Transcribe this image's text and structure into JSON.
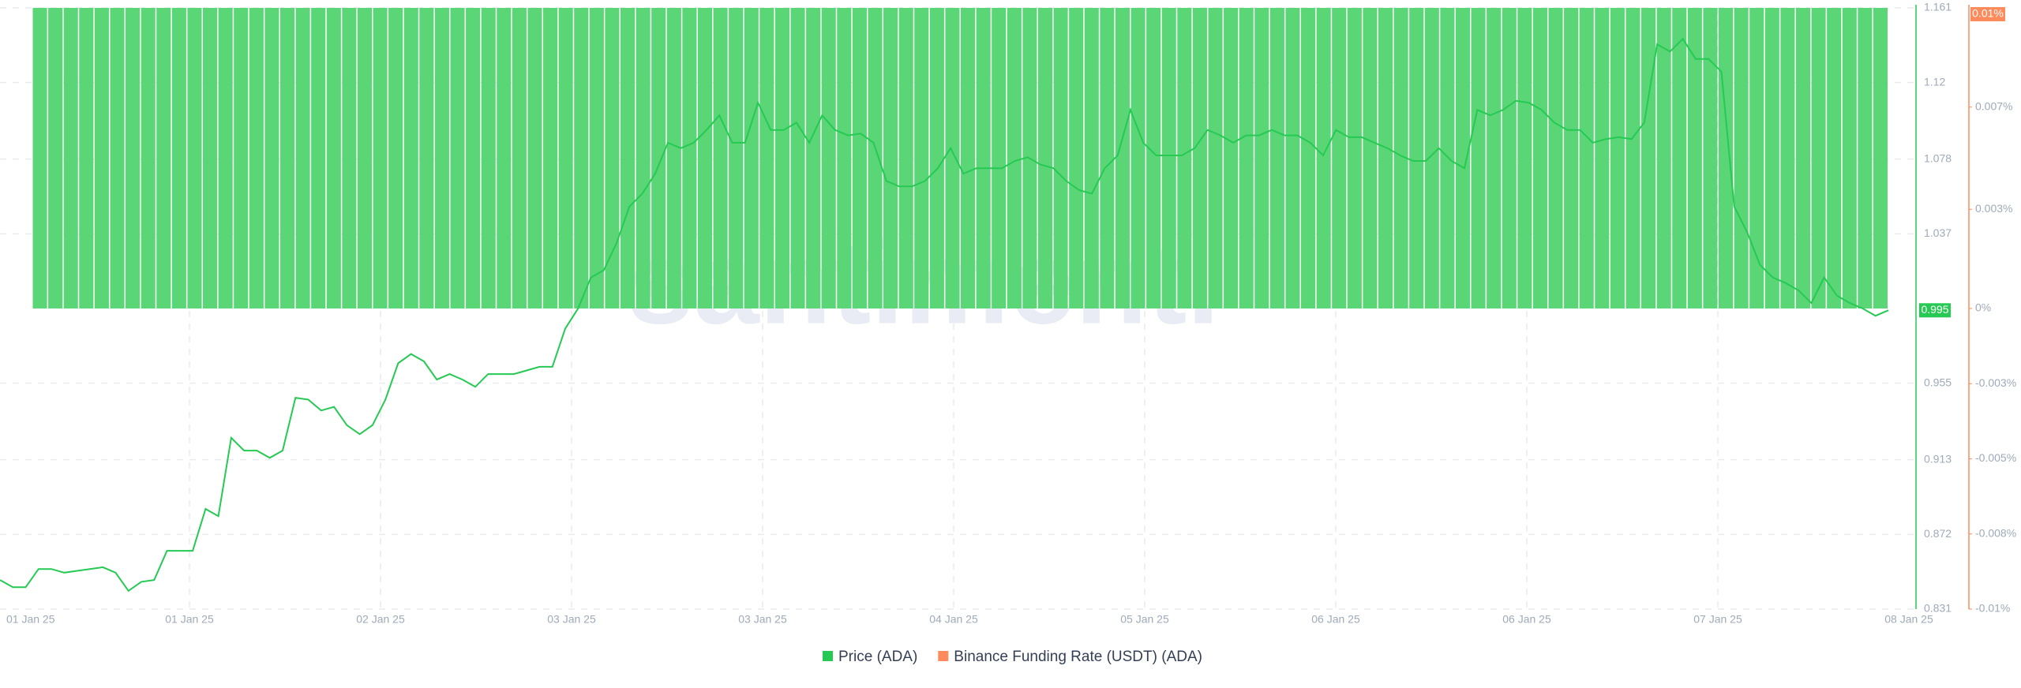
{
  "chart_data": {
    "type": "line",
    "watermark": "santiment.",
    "x_tick_labels": [
      "01 Jan 25",
      "01 Jan 25",
      "02 Jan 25",
      "03 Jan 25",
      "03 Jan 25",
      "04 Jan 25",
      "05 Jan 25",
      "06 Jan 25",
      "06 Jan 25",
      "07 Jan 25",
      "08 Jan 25"
    ],
    "ylim": [
      0.831,
      1.161
    ],
    "yticks": [
      1.161,
      1.12,
      1.078,
      1.037,
      0.955,
      0.913,
      0.872,
      0.831
    ],
    "y2lim": [
      -0.01,
      0.01
    ],
    "y2ticks": [
      {
        "value": 0.01,
        "label": "0.01%"
      },
      {
        "value": 0.0067,
        "label": "0.007%"
      },
      {
        "value": 0.0033,
        "label": "0.003%"
      },
      {
        "value": 0,
        "label": "0%"
      },
      {
        "value": -0.0025,
        "label": "-0.003%"
      },
      {
        "value": -0.005,
        "label": "-0.005%"
      },
      {
        "value": -0.0075,
        "label": "-0.008%"
      },
      {
        "value": -0.01,
        "label": "-0.01%"
      }
    ],
    "grid": true,
    "series": [
      {
        "name": "Price (ADA)",
        "color": "#26c953",
        "values": [
          0.847,
          0.843,
          0.843,
          0.853,
          0.853,
          0.851,
          0.852,
          0.853,
          0.854,
          0.851,
          0.841,
          0.846,
          0.847,
          0.863,
          0.863,
          0.863,
          0.886,
          0.882,
          0.925,
          0.918,
          0.918,
          0.914,
          0.918,
          0.947,
          0.946,
          0.94,
          0.942,
          0.932,
          0.927,
          0.932,
          0.946,
          0.966,
          0.971,
          0.967,
          0.957,
          0.96,
          0.957,
          0.953,
          0.96,
          0.96,
          0.96,
          0.962,
          0.964,
          0.964,
          0.985,
          0.996,
          1.013,
          1.017,
          1.032,
          1.052,
          1.059,
          1.07,
          1.087,
          1.084,
          1.087,
          1.094,
          1.102,
          1.087,
          1.087,
          1.109,
          1.094,
          1.094,
          1.098,
          1.087,
          1.102,
          1.094,
          1.091,
          1.092,
          1.087,
          1.066,
          1.063,
          1.063,
          1.066,
          1.073,
          1.084,
          1.07,
          1.073,
          1.073,
          1.073,
          1.077,
          1.079,
          1.075,
          1.073,
          1.066,
          1.061,
          1.059,
          1.073,
          1.08,
          1.105,
          1.087,
          1.08,
          1.08,
          1.08,
          1.084,
          1.094,
          1.091,
          1.087,
          1.091,
          1.091,
          1.094,
          1.091,
          1.091,
          1.087,
          1.08,
          1.094,
          1.09,
          1.09,
          1.087,
          1.084,
          1.08,
          1.077,
          1.077,
          1.084,
          1.077,
          1.073,
          1.105,
          1.102,
          1.105,
          1.11,
          1.109,
          1.105,
          1.098,
          1.094,
          1.094,
          1.087,
          1.089,
          1.09,
          1.089,
          1.098,
          1.141,
          1.137,
          1.144,
          1.133,
          1.133,
          1.126,
          1.052,
          1.038,
          1.02,
          1.013,
          1.01,
          1.006,
          0.999,
          1.013,
          1.003,
          0.999,
          0.996,
          0.992,
          0.995
        ]
      },
      {
        "name": "Binance Funding Rate (USDT) (ADA)",
        "color": "#ff8a5c",
        "bar_color": "#5ad677",
        "axis": "y2",
        "values": [
          0.01,
          0.01,
          0.01,
          0.01,
          0.01,
          0.01,
          0.01,
          0.01,
          0.01,
          0.01,
          0.01,
          0.01,
          0.01,
          0.01,
          0.01,
          0.01,
          0.01,
          0.01,
          0.01,
          0.01,
          0.01,
          0.01,
          0.01,
          0.01,
          0.01,
          0.01,
          0.01,
          0.01,
          0.01,
          0.01,
          0.01,
          0.01,
          0.01,
          0.01,
          0.01,
          0.01,
          0.01,
          0.01,
          0.01,
          0.01,
          0.01,
          0.01,
          0.01,
          0.01,
          0.01,
          0.01,
          0.01,
          0.01,
          0.01,
          0.01,
          0.01,
          0.01,
          0.01,
          0.01,
          0.01,
          0.01,
          0.01,
          0.01,
          0.01,
          0.01,
          0.01,
          0.01,
          0.01,
          0.01,
          0.01,
          0.01,
          0.01,
          0.01,
          0.01,
          0.01,
          0.01,
          0.01,
          0.01,
          0.01,
          0.01,
          0.01,
          0.01,
          0.01,
          0.01,
          0.01,
          0.01,
          0.01,
          0.01,
          0.01,
          0.01,
          0.01,
          0.01,
          0.01,
          0.01,
          0.01,
          0.01,
          0.01,
          0.01,
          0.01,
          0.01,
          0.01,
          0.01,
          0.01,
          0.01,
          0.01,
          0.01,
          0.01,
          0.01,
          0.01,
          0.01,
          0.01,
          0.01,
          0.01,
          0.01,
          0.01,
          0.01,
          0.01,
          0.01,
          0.01,
          0.01,
          0.01,
          0.01,
          0.01,
          0.01,
          0.01
        ]
      }
    ]
  }
}
